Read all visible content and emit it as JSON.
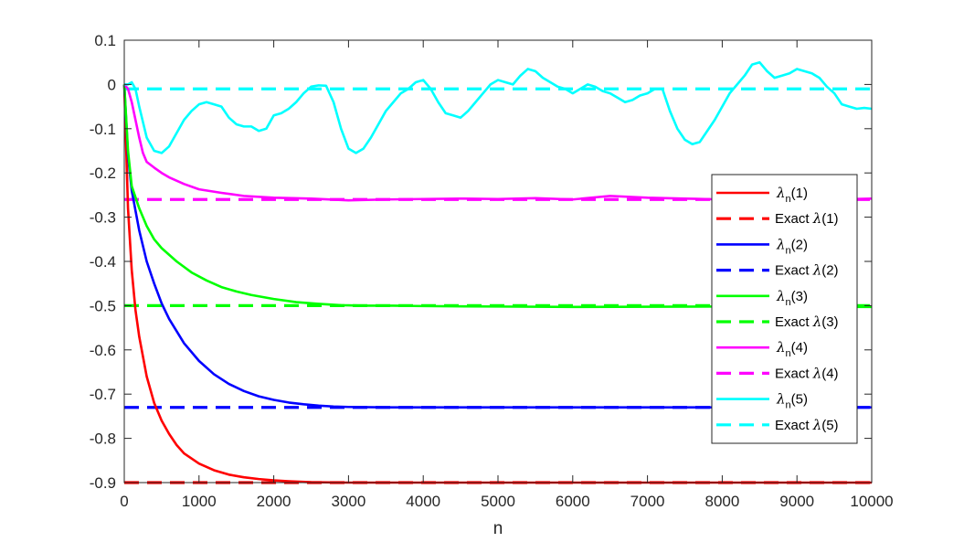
{
  "chart_data": {
    "type": "line",
    "xlabel": "n",
    "ylabel": "",
    "title": "",
    "xlim": [
      0,
      10000
    ],
    "ylim": [
      -0.9,
      0.1
    ],
    "xticks": [
      0,
      1000,
      2000,
      3000,
      4000,
      5000,
      6000,
      7000,
      8000,
      9000,
      10000
    ],
    "yticks": [
      0.1,
      0,
      -0.1,
      -0.2,
      -0.3,
      -0.4,
      -0.5,
      -0.6,
      -0.7,
      -0.8,
      -0.9
    ],
    "xtick_labels": [
      "0",
      "1000",
      "2000",
      "3000",
      "4000",
      "5000",
      "6000",
      "7000",
      "8000",
      "9000",
      "10000"
    ],
    "ytick_labels": [
      "0.1",
      "0",
      "-0.1",
      "-0.2",
      "-0.3",
      "-0.4",
      "-0.5",
      "-0.6",
      "-0.7",
      "-0.8",
      "-0.9"
    ],
    "grid": false,
    "legend_position": "right",
    "series": [
      {
        "key": "s1",
        "color": "#ff0000",
        "style": "solid",
        "legend_symbol": "λ",
        "legend_sub": "n",
        "legend_arg": "(1)",
        "x": [
          0,
          50,
          100,
          150,
          200,
          300,
          400,
          500,
          600,
          700,
          800,
          1000,
          1200,
          1400,
          1600,
          1800,
          2000,
          2200,
          2500,
          3000,
          4000,
          6000,
          8000,
          10000
        ],
        "y": [
          0,
          -0.28,
          -0.42,
          -0.51,
          -0.57,
          -0.66,
          -0.72,
          -0.76,
          -0.79,
          -0.815,
          -0.834,
          -0.857,
          -0.872,
          -0.882,
          -0.888,
          -0.892,
          -0.895,
          -0.897,
          -0.899,
          -0.9,
          -0.9,
          -0.9,
          -0.9,
          -0.9
        ]
      },
      {
        "key": "e1",
        "color": "#ff0000",
        "style": "dashed",
        "legend_label": "Exact ",
        "legend_symbol": "λ",
        "legend_arg": "(1)",
        "x": [
          0,
          10000
        ],
        "y": [
          -0.9,
          -0.9
        ]
      },
      {
        "key": "s2",
        "color": "#0000ff",
        "style": "solid",
        "legend_symbol": "λ",
        "legend_sub": "n",
        "legend_arg": "(2)",
        "x": [
          0,
          50,
          100,
          200,
          300,
          400,
          500,
          600,
          800,
          1000,
          1200,
          1400,
          1600,
          1800,
          2000,
          2200,
          2400,
          2600,
          2800,
          3000,
          3500,
          4000,
          6000,
          8000,
          10000
        ],
        "y": [
          0,
          -0.16,
          -0.24,
          -0.33,
          -0.4,
          -0.45,
          -0.495,
          -0.53,
          -0.585,
          -0.625,
          -0.655,
          -0.677,
          -0.693,
          -0.705,
          -0.713,
          -0.719,
          -0.723,
          -0.726,
          -0.728,
          -0.729,
          -0.73,
          -0.73,
          -0.73,
          -0.73,
          -0.73
        ]
      },
      {
        "key": "e2",
        "color": "#0000ff",
        "style": "dashed",
        "legend_label": "Exact ",
        "legend_symbol": "λ",
        "legend_arg": "(2)",
        "x": [
          0,
          10000
        ],
        "y": [
          -0.73,
          -0.73
        ]
      },
      {
        "key": "s3",
        "color": "#00ff00",
        "style": "solid",
        "legend_symbol": "λ",
        "legend_sub": "n",
        "legend_arg": "(3)",
        "x": [
          0,
          50,
          100,
          200,
          300,
          400,
          500,
          700,
          900,
          1100,
          1300,
          1500,
          1700,
          2000,
          2300,
          2600,
          2900,
          3200,
          3600,
          4000,
          5000,
          6000,
          8000,
          10000
        ],
        "y": [
          0,
          -0.15,
          -0.23,
          -0.28,
          -0.32,
          -0.35,
          -0.37,
          -0.4,
          -0.425,
          -0.443,
          -0.458,
          -0.468,
          -0.476,
          -0.485,
          -0.492,
          -0.496,
          -0.499,
          -0.5,
          -0.5,
          -0.501,
          -0.502,
          -0.503,
          -0.502,
          -0.503
        ]
      },
      {
        "key": "e3",
        "color": "#00ff00",
        "style": "dashed",
        "legend_label": "Exact ",
        "legend_symbol": "λ",
        "legend_arg": "(3)",
        "x": [
          0,
          10000
        ],
        "y": [
          -0.5,
          -0.5
        ]
      },
      {
        "key": "s4",
        "color": "#ff00ff",
        "style": "solid",
        "legend_symbol": "λ",
        "legend_sub": "n",
        "legend_arg": "(4)",
        "x": [
          0,
          50,
          100,
          150,
          200,
          250,
          300,
          400,
          500,
          600,
          800,
          1000,
          1300,
          1600,
          2000,
          2500,
          3000,
          3500,
          4000,
          4500,
          5000,
          5500,
          6000,
          6500,
          7000,
          7500,
          8000,
          8500,
          9000,
          9500,
          10000
        ],
        "y": [
          0,
          -0.01,
          -0.04,
          -0.08,
          -0.12,
          -0.155,
          -0.175,
          -0.188,
          -0.2,
          -0.21,
          -0.225,
          -0.237,
          -0.245,
          -0.252,
          -0.256,
          -0.258,
          -0.262,
          -0.26,
          -0.259,
          -0.258,
          -0.259,
          -0.257,
          -0.26,
          -0.252,
          -0.256,
          -0.258,
          -0.26,
          -0.257,
          -0.259,
          -0.26,
          -0.258
        ]
      },
      {
        "key": "e4",
        "color": "#ff00ff",
        "style": "dashed",
        "legend_label": "Exact ",
        "legend_symbol": "λ",
        "legend_arg": "(4)",
        "x": [
          0,
          10000
        ],
        "y": [
          -0.26,
          -0.26
        ]
      },
      {
        "key": "s5",
        "color": "#00ffff",
        "style": "solid",
        "legend_symbol": "λ",
        "legend_sub": "n",
        "legend_arg": "(5)",
        "x": [
          0,
          50,
          100,
          150,
          200,
          300,
          400,
          500,
          600,
          700,
          800,
          900,
          1000,
          1100,
          1200,
          1300,
          1400,
          1500,
          1600,
          1700,
          1800,
          1900,
          2000,
          2100,
          2200,
          2300,
          2400,
          2500,
          2600,
          2700,
          2800,
          2900,
          3000,
          3100,
          3200,
          3300,
          3400,
          3500,
          3600,
          3700,
          3800,
          3900,
          4000,
          4100,
          4200,
          4300,
          4400,
          4500,
          4600,
          4700,
          4800,
          4900,
          5000,
          5100,
          5200,
          5300,
          5400,
          5500,
          5600,
          5700,
          5800,
          5900,
          6000,
          6100,
          6200,
          6300,
          6400,
          6500,
          6600,
          6700,
          6800,
          6900,
          7000,
          7100,
          7200,
          7300,
          7400,
          7500,
          7600,
          7700,
          7800,
          7900,
          8000,
          8100,
          8200,
          8300,
          8400,
          8500,
          8600,
          8700,
          8800,
          8900,
          9000,
          9100,
          9200,
          9300,
          9400,
          9500,
          9600,
          9700,
          9800,
          9900,
          10000
        ],
        "y": [
          0,
          0.0,
          0.005,
          -0.01,
          -0.05,
          -0.12,
          -0.15,
          -0.155,
          -0.14,
          -0.11,
          -0.08,
          -0.06,
          -0.045,
          -0.04,
          -0.045,
          -0.05,
          -0.075,
          -0.09,
          -0.095,
          -0.095,
          -0.105,
          -0.1,
          -0.07,
          -0.065,
          -0.055,
          -0.04,
          -0.02,
          -0.005,
          -0.002,
          -0.003,
          -0.04,
          -0.1,
          -0.145,
          -0.155,
          -0.145,
          -0.12,
          -0.09,
          -0.06,
          -0.04,
          -0.02,
          -0.01,
          0.005,
          0.01,
          -0.01,
          -0.04,
          -0.065,
          -0.07,
          -0.075,
          -0.06,
          -0.04,
          -0.02,
          0.0,
          0.01,
          0.005,
          0.0,
          0.02,
          0.035,
          0.03,
          0.015,
          0.005,
          -0.005,
          -0.01,
          -0.02,
          -0.01,
          0.0,
          -0.005,
          -0.015,
          -0.02,
          -0.03,
          -0.04,
          -0.035,
          -0.025,
          -0.02,
          -0.01,
          -0.01,
          -0.06,
          -0.1,
          -0.125,
          -0.135,
          -0.13,
          -0.105,
          -0.08,
          -0.05,
          -0.02,
          0.0,
          0.02,
          0.045,
          0.05,
          0.03,
          0.015,
          0.02,
          0.025,
          0.035,
          0.03,
          0.025,
          0.015,
          -0.005,
          -0.02,
          -0.045,
          -0.05,
          -0.055,
          -0.053,
          -0.055
        ]
      },
      {
        "key": "e5",
        "color": "#00ffff",
        "style": "dashed",
        "legend_label": "Exact ",
        "legend_symbol": "λ",
        "legend_arg": "(5)",
        "x": [
          0,
          10000
        ],
        "y": [
          -0.01,
          -0.01
        ]
      }
    ]
  }
}
